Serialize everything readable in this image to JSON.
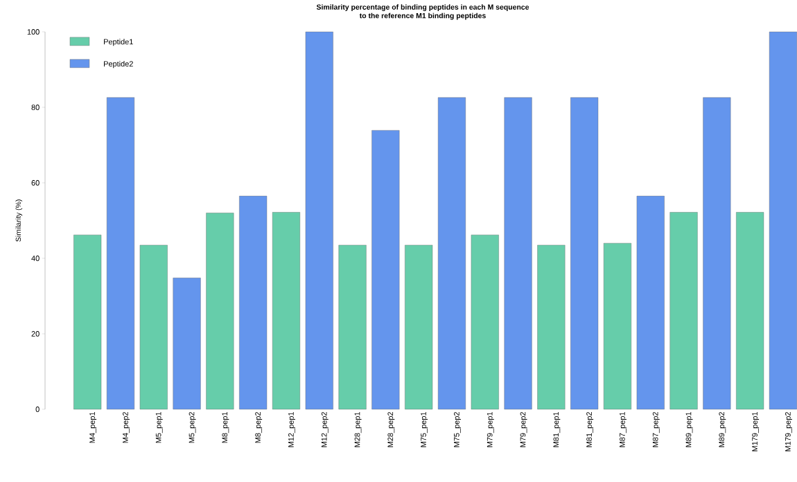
{
  "chart_data": {
    "type": "bar",
    "title": "Similarity percentage of binding peptides in each M sequence\nto the reference M1 binding peptides",
    "ylabel": "Similarity (%)",
    "categories": [
      "M4_pep1",
      "M4_pep2",
      "M5_pep1",
      "M5_pep2",
      "M8_pep1",
      "M8_pep2",
      "M12_pep1",
      "M12_pep2",
      "M28_pep1",
      "M28_pep2",
      "M75_pep1",
      "M75_pep2",
      "M79_pep1",
      "M79_pep2",
      "M81_pep1",
      "M81_pep2",
      "M87_pep1",
      "M87_pep2",
      "M89_pep1",
      "M89_pep2",
      "M179_pep1",
      "M179_pep2"
    ],
    "series": [
      {
        "name": "Peptide1",
        "color": "#66cdaa",
        "values": [
          46.2,
          null,
          43.5,
          null,
          52,
          null,
          52.2,
          null,
          43.5,
          null,
          43.5,
          null,
          46.2,
          null,
          43.5,
          null,
          44,
          null,
          52.2,
          null,
          52.2,
          null
        ]
      },
      {
        "name": "Peptide2",
        "color": "#6495ed",
        "values": [
          null,
          82.6,
          null,
          34.8,
          null,
          56.5,
          null,
          100,
          null,
          73.9,
          null,
          82.6,
          null,
          82.6,
          null,
          82.6,
          null,
          56.5,
          null,
          82.6,
          null,
          100
        ]
      }
    ],
    "ylim": [
      0,
      100
    ],
    "yticks": [
      0,
      20,
      40,
      60,
      80,
      100
    ],
    "grid": false,
    "legend": "top left"
  }
}
